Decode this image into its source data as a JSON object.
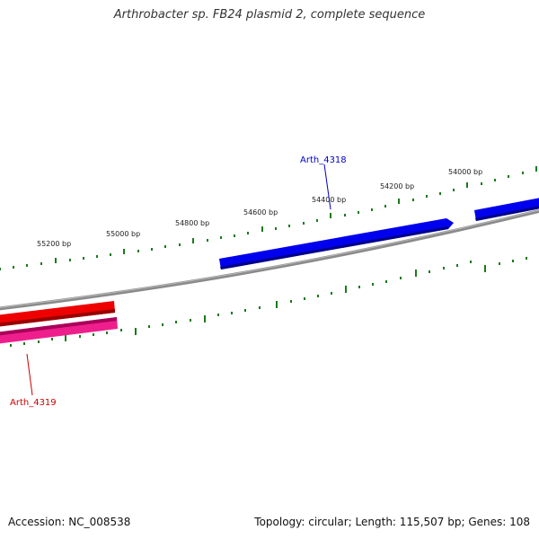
{
  "title": "Arthrobacter sp. FB24 plasmid 2, complete sequence",
  "footer": {
    "accession": "Accession: NC_008538",
    "summary": "Topology: circular; Length: 115,507 bp; Genes: 108"
  },
  "tick_labels": [
    "55200 bp",
    "55000 bp",
    "54800 bp",
    "54600 bp",
    "54400 bp",
    "54200 bp",
    "54000 bp"
  ],
  "genes": [
    {
      "name": "Arth_4318",
      "color": "#0000cc"
    },
    {
      "name": "Arth_4319",
      "color": "#cc0000"
    }
  ],
  "colors": {
    "backbone": "#888888",
    "ticks": "#1a7a1a",
    "forward_gene": "#0000ee",
    "reverse_gene_1": "#ee0000",
    "reverse_gene_2": "#ee1f8c"
  }
}
